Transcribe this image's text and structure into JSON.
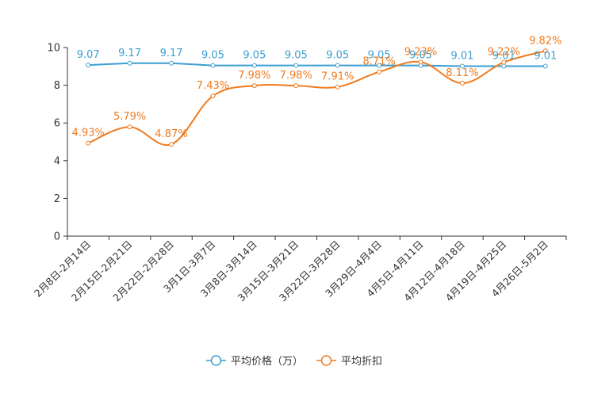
{
  "chart_data": {
    "type": "line",
    "title": "",
    "xlabel": "",
    "ylabel": "",
    "ylim": [
      0,
      10
    ],
    "yticks": [
      0,
      2,
      4,
      6,
      8,
      10
    ],
    "grid": false,
    "legend_position": "bottom",
    "categories": [
      "2月8日-2月14日",
      "2月15日-2月21日",
      "2月22日-2月28日",
      "3月1日-3月7日",
      "3月8日-3月14日",
      "3月15日-3月21日",
      "3月22日-3月28日",
      "3月29日-4月4日",
      "4月5日-4月11日",
      "4月12日-4月18日",
      "4月19日-4月25日",
      "4月26日-5月2日"
    ],
    "series": [
      {
        "name": "平均价格（万）",
        "color": "#3c9fd1",
        "smooth": false,
        "values": [
          9.07,
          9.17,
          9.17,
          9.05,
          9.05,
          9.05,
          9.05,
          9.05,
          9.05,
          9.01,
          9.01,
          9.01
        ],
        "labels": [
          "9.07",
          "9.17",
          "9.17",
          "9.05",
          "9.05",
          "9.05",
          "9.05",
          "9.05",
          "9.05",
          "9.01",
          "9.01",
          "9.01"
        ]
      },
      {
        "name": "平均折扣",
        "color": "#f07b1e",
        "smooth": true,
        "values": [
          4.93,
          5.79,
          4.87,
          7.43,
          7.98,
          7.98,
          7.91,
          8.71,
          9.23,
          8.11,
          9.22,
          9.82
        ],
        "labels": [
          "4.93%",
          "5.79%",
          "4.87%",
          "7.43%",
          "7.98%",
          "7.98%",
          "7.91%",
          "8.71%",
          "9.23%",
          "8.11%",
          "9.22%",
          "9.82%"
        ]
      }
    ]
  }
}
